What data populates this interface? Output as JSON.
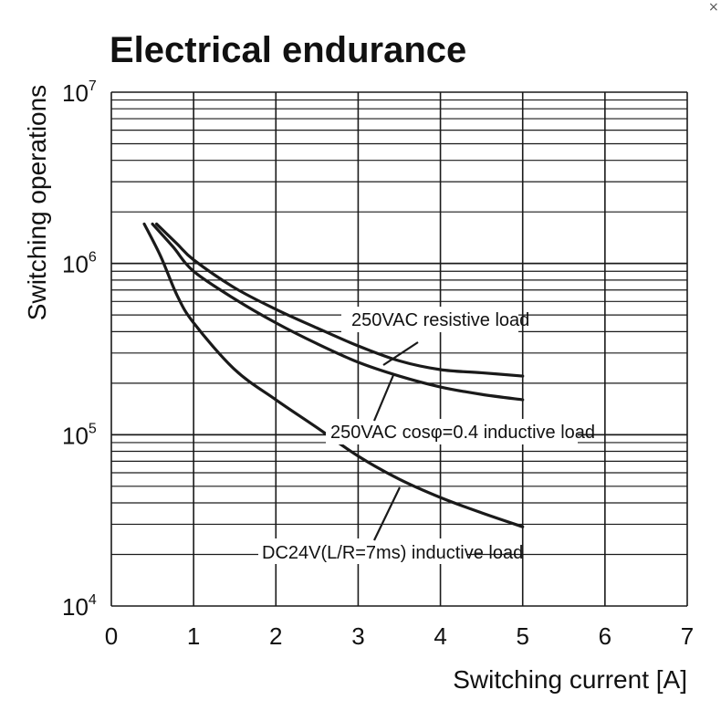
{
  "chart_data": {
    "type": "line",
    "title": "Electrical endurance",
    "xlabel": "Switching current [A]",
    "ylabel": "Switching operations",
    "x_ticks": [
      "0",
      "1",
      "2",
      "3",
      "4",
      "5",
      "6",
      "7"
    ],
    "y_ticks": [
      {
        "base": "10",
        "exp": "4"
      },
      {
        "base": "10",
        "exp": "5"
      },
      {
        "base": "10",
        "exp": "6"
      },
      {
        "base": "10",
        "exp": "7"
      }
    ],
    "xlim": [
      0,
      7
    ],
    "ylim": [
      10000,
      10000000
    ],
    "y_scale": "log",
    "grid": true,
    "series": [
      {
        "name": "250VAC resistive load",
        "x": [
          0.55,
          0.8,
          1.0,
          1.5,
          2.0,
          2.5,
          3.0,
          3.5,
          4.0,
          4.5,
          5.0
        ],
        "y": [
          1700000,
          1300000,
          1050000,
          720000,
          540000,
          420000,
          330000,
          270000,
          240000,
          230000,
          220000
        ]
      },
      {
        "name": "250VAC cosφ=0.4 inductive load",
        "x": [
          0.5,
          0.75,
          1.0,
          1.5,
          2.0,
          2.5,
          3.0,
          3.5,
          4.0,
          4.5,
          5.0
        ],
        "y": [
          1700000,
          1250000,
          900000,
          620000,
          450000,
          340000,
          265000,
          220000,
          190000,
          172000,
          160000
        ]
      },
      {
        "name": "DC24V(L/R=7ms) inductive load",
        "x": [
          0.4,
          0.6,
          0.8,
          1.0,
          1.5,
          2.0,
          2.5,
          3.0,
          3.5,
          4.0,
          4.5,
          5.0
        ],
        "y": [
          1700000,
          1100000,
          650000,
          450000,
          240000,
          160000,
          110000,
          75000,
          55000,
          43000,
          35000,
          29000
        ]
      }
    ]
  },
  "ui": {
    "close_glyph": "×"
  }
}
